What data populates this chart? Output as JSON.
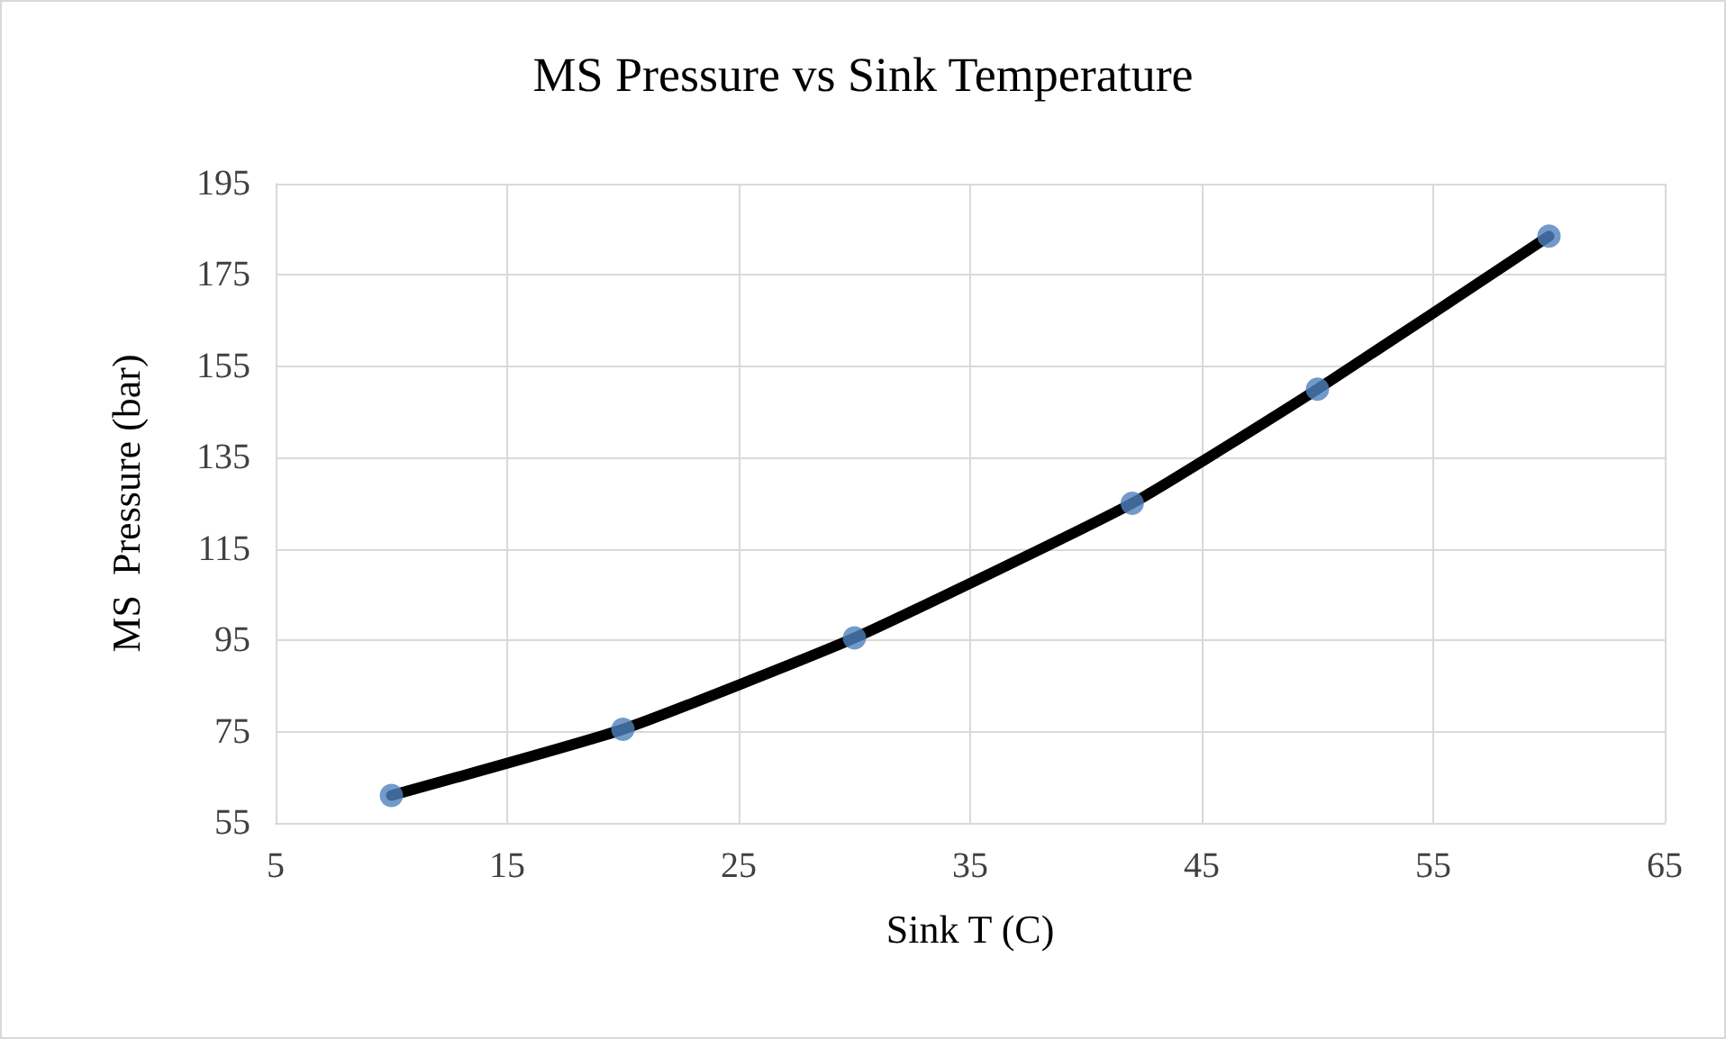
{
  "chart_data": {
    "type": "line",
    "title": "MS Pressure vs Sink Temperature",
    "xlabel": "Sink T (C)",
    "ylabel": "MS  Pressure (bar)",
    "x": [
      10,
      20,
      30,
      42,
      50,
      60
    ],
    "series": [
      {
        "color": "#000000",
        "marker": "none",
        "values": [
          61,
          75.5,
          95.5,
          125,
          150,
          183.5
        ]
      },
      {
        "type": "scatter",
        "color": "#4f81bd",
        "marker": "circle",
        "values": [
          61,
          75.5,
          95.5,
          125,
          150,
          183.5
        ]
      }
    ],
    "xlim": [
      5,
      65
    ],
    "xticks": [
      5,
      15,
      25,
      35,
      45,
      55,
      65
    ],
    "ylim": [
      55,
      195
    ],
    "yticks": [
      55,
      75,
      95,
      115,
      135,
      155,
      175,
      195
    ],
    "grid": true
  }
}
